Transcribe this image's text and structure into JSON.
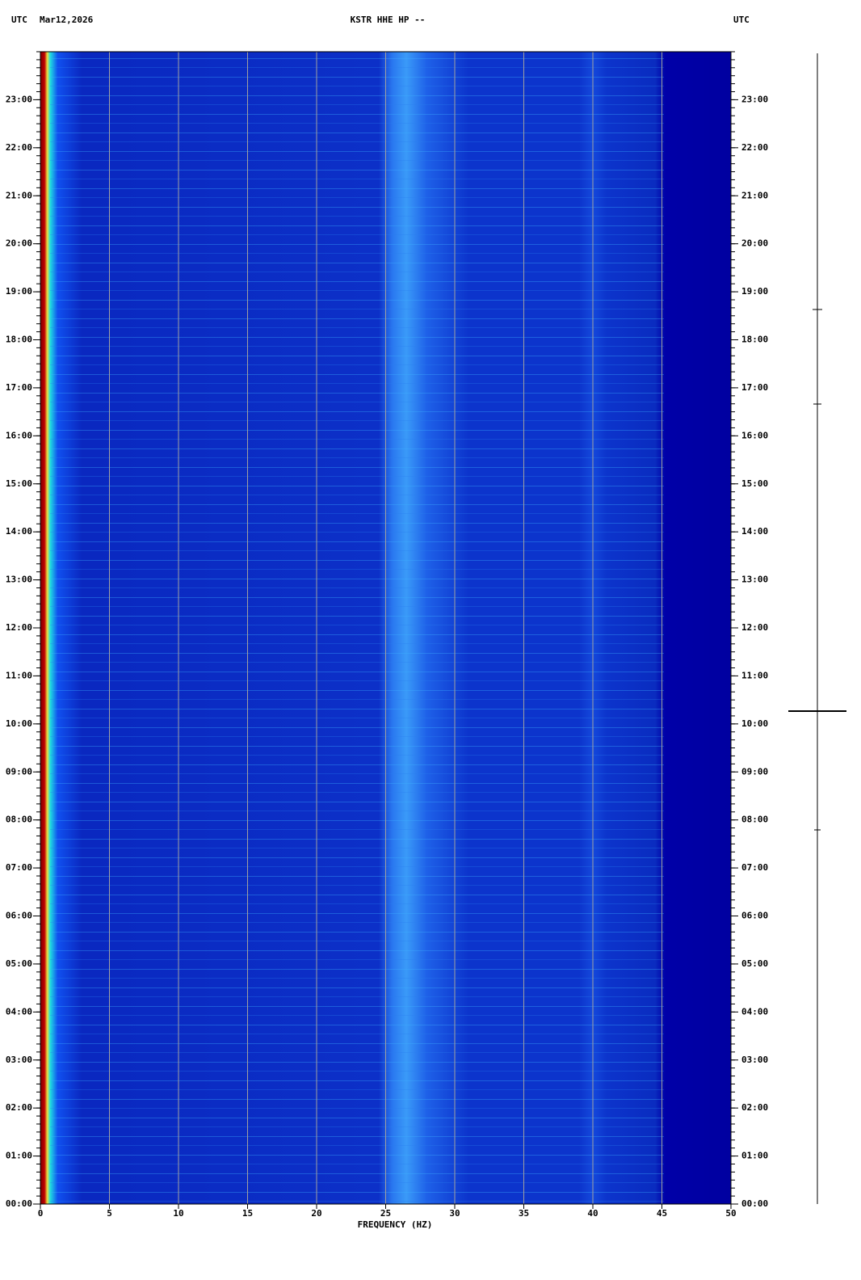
{
  "chart_data": {
    "type": "spectrogram",
    "timezone": "UTC",
    "date": "Mar12,2026",
    "title": "KSTR HHE HP --",
    "x_label": "FREQUENCY (HZ)",
    "xlim": [
      0,
      50
    ],
    "xticks": [
      0,
      5,
      10,
      15,
      20,
      25,
      30,
      35,
      40,
      45,
      50
    ],
    "ylim": [
      0,
      24
    ],
    "yticks": [
      {
        "value": 0,
        "label": "00:00"
      },
      {
        "value": 1,
        "label": "01:00"
      },
      {
        "value": 2,
        "label": "02:00"
      },
      {
        "value": 3,
        "label": "03:00"
      },
      {
        "value": 4,
        "label": "04:00"
      },
      {
        "value": 5,
        "label": "05:00"
      },
      {
        "value": 6,
        "label": "06:00"
      },
      {
        "value": 7,
        "label": "07:00"
      },
      {
        "value": 8,
        "label": "08:00"
      },
      {
        "value": 9,
        "label": "09:00"
      },
      {
        "value": 10,
        "label": "10:00"
      },
      {
        "value": 11,
        "label": "11:00"
      },
      {
        "value": 12,
        "label": "12:00"
      },
      {
        "value": 13,
        "label": "13:00"
      },
      {
        "value": 14,
        "label": "14:00"
      },
      {
        "value": 15,
        "label": "15:00"
      },
      {
        "value": 16,
        "label": "16:00"
      },
      {
        "value": 17,
        "label": "17:00"
      },
      {
        "value": 18,
        "label": "18:00"
      },
      {
        "value": 19,
        "label": "19:00"
      },
      {
        "value": 20,
        "label": "20:00"
      },
      {
        "value": 21,
        "label": "21:00"
      },
      {
        "value": 22,
        "label": "22:00"
      },
      {
        "value": 23,
        "label": "23:00"
      }
    ],
    "grid": true
  }
}
